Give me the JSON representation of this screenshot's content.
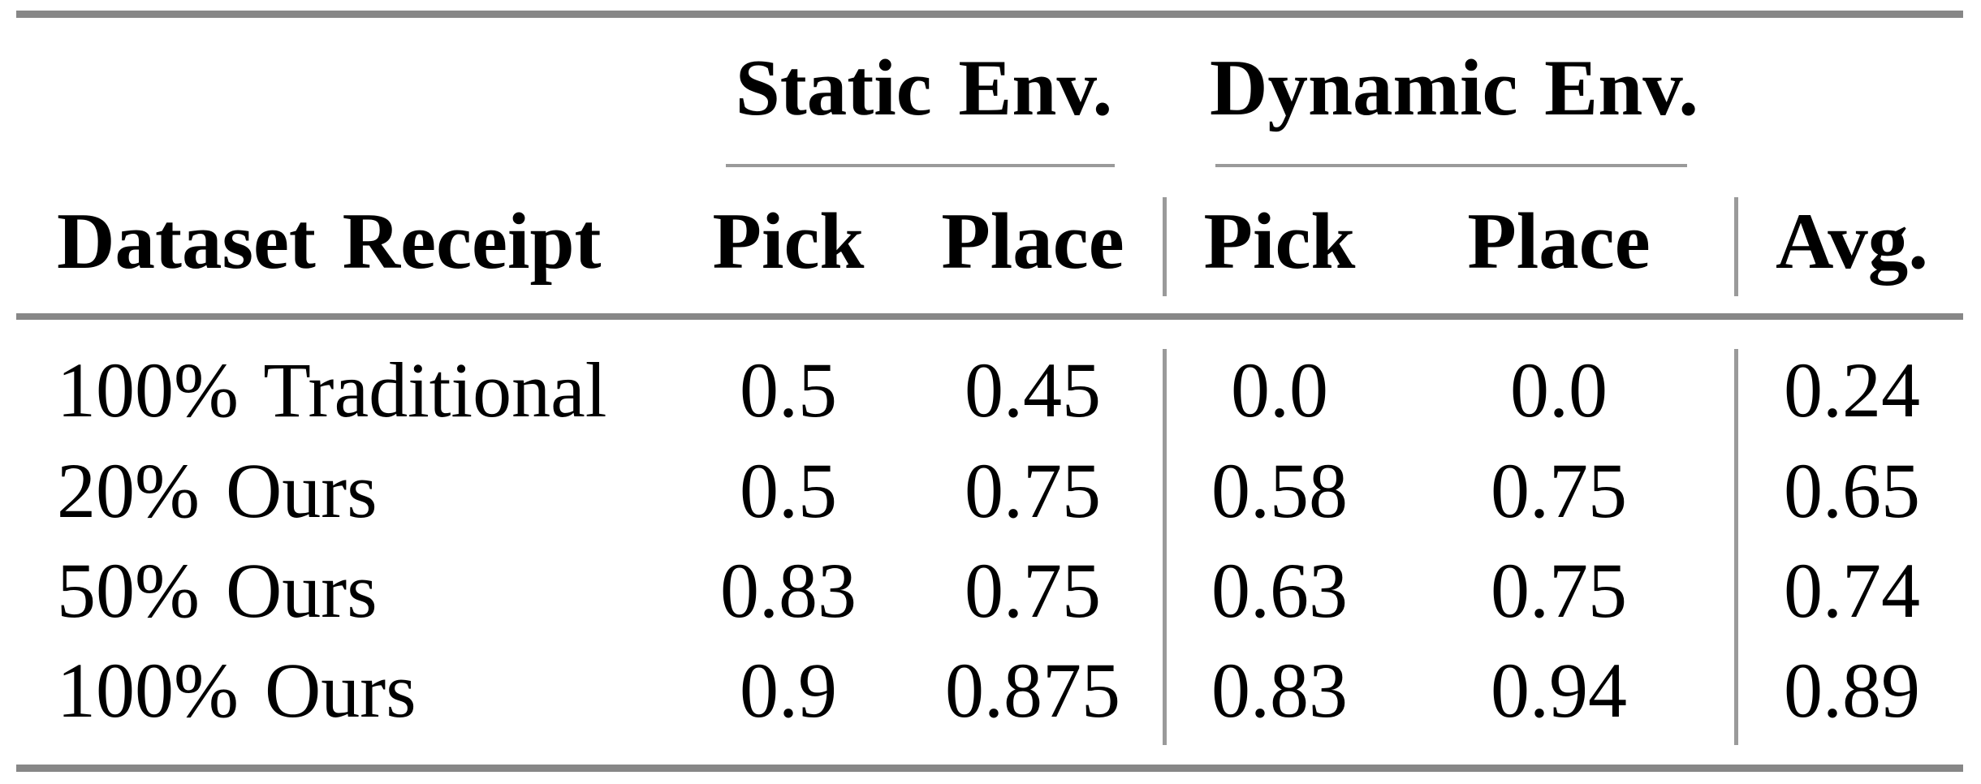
{
  "page": {
    "background": "#ffffff"
  },
  "table": {
    "group_headers": [
      {
        "label": "Static Env."
      },
      {
        "label": "Dynamic Env."
      }
    ],
    "columns": [
      "Dataset Receipt",
      "Pick",
      "Place",
      "Pick",
      "Place",
      "Avg."
    ],
    "rows": [
      {
        "cells": [
          "100% Traditional",
          "0.5",
          "0.45",
          "0.0",
          "0.0",
          "0.24"
        ]
      },
      {
        "cells": [
          "20% Ours",
          "0.5",
          "0.75",
          "0.58",
          "0.75",
          "0.65"
        ]
      },
      {
        "cells": [
          "50% Ours",
          "0.83",
          "0.75",
          "0.63",
          "0.75",
          "0.74"
        ]
      },
      {
        "cells": [
          "100% Ours",
          "0.9",
          "0.875",
          "0.83",
          "0.94",
          "0.89"
        ]
      }
    ],
    "colors": {
      "rule_thick": "#878787",
      "rule_thin": "#9a9a9a",
      "text": "#000000",
      "background": "#ffffff"
    }
  }
}
